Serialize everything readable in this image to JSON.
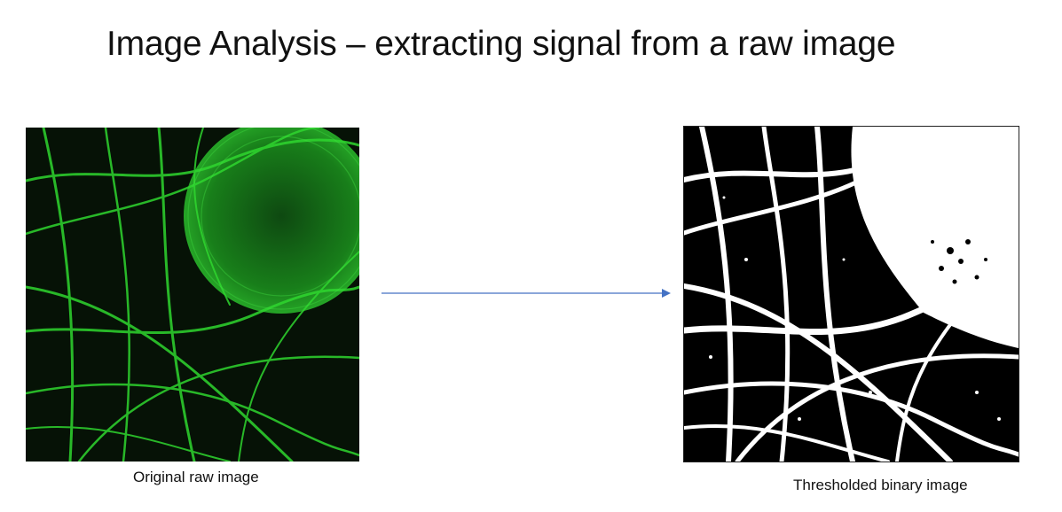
{
  "slide": {
    "title": "Image Analysis – extracting signal from a raw image"
  },
  "images": {
    "raw": {
      "caption": "Original raw image",
      "description_icon": "fluorescence-filament-image"
    },
    "binary": {
      "caption": "Thresholded binary image",
      "description_icon": "binary-mask-image"
    }
  },
  "colors": {
    "signal_green": "#2fd62f",
    "arrow_blue": "#4472c4"
  }
}
